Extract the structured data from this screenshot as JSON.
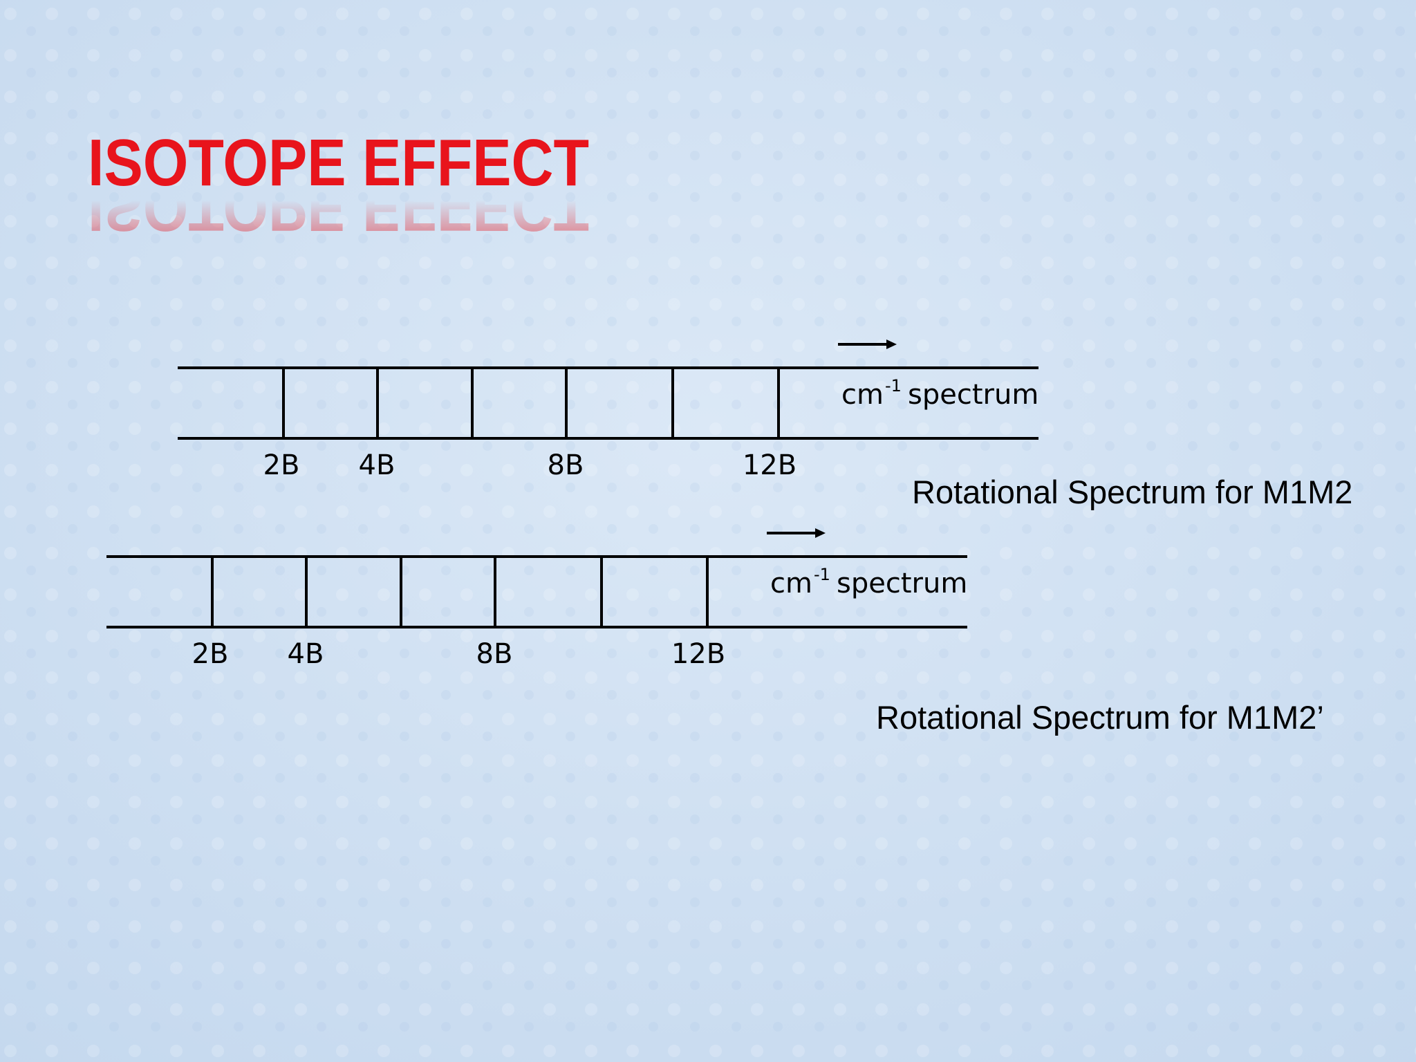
{
  "header": {
    "title": "ISOTOPE EFFECT"
  },
  "spectra": [
    {
      "tick_labels": [
        "2B",
        "4B",
        "8B",
        "12B"
      ],
      "unit": "cm",
      "unit_exponent": "-1",
      "axis_label": "spectrum",
      "caption": "Rotational Spectrum for M1M2"
    },
    {
      "tick_labels": [
        "2B",
        "4B",
        "8B",
        "12B"
      ],
      "unit": "cm",
      "unit_exponent": "-1",
      "axis_label": "spectrum",
      "caption": "Rotational Spectrum for M1M2’"
    }
  ]
}
